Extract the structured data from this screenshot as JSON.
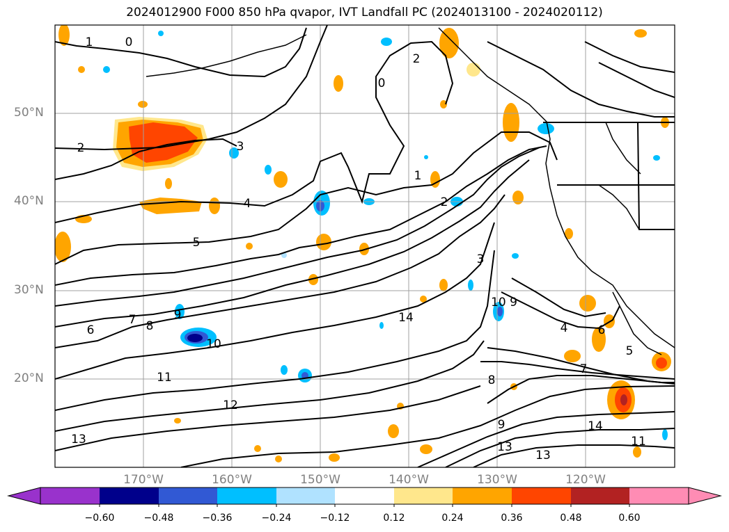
{
  "title": "2024012900 F000 850 hPa qvapor, IVT Landfall PC (2024013100 - 2024020112)",
  "latitude_labels": [
    "50°N",
    "40°N",
    "30°N",
    "20°N"
  ],
  "longitude_labels": [
    "170°W",
    "160°W",
    "150°W",
    "140°W",
    "130°W",
    "120°W"
  ],
  "colorbar": {
    "colors": [
      "#9932cc",
      "#00008b",
      "#3159d4",
      "#00bfff",
      "#b0e2ff",
      "#ffffff",
      "#ffe78c",
      "#ffa500",
      "#ff4500",
      "#b22222",
      "#ff8cb4"
    ],
    "tick_labels": [
      "−0.60",
      "−0.48",
      "−0.36",
      "−0.24",
      "−0.12",
      "0.12",
      "0.24",
      "0.36",
      "0.48",
      "0.60"
    ]
  },
  "contour_labels": [
    "1",
    "0",
    "2",
    "3",
    "4",
    "5",
    "6",
    "7",
    "8",
    "9",
    "10",
    "11",
    "12",
    "13",
    "14",
    "10 9",
    "2",
    "0",
    "1",
    "2",
    "3",
    "4",
    "5",
    "6",
    "7",
    "8",
    "9",
    "13",
    "14",
    "11",
    "13",
    "14"
  ]
}
